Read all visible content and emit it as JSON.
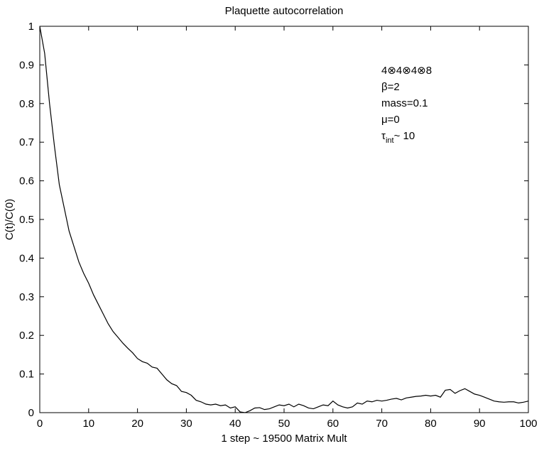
{
  "chart_data": {
    "type": "line",
    "title": "Plaquette autocorrelation",
    "xlabel": "1 step ~ 19500 Matrix Mult",
    "ylabel": "C(t)/C(0)",
    "annotations": [
      "4⊗4⊗4⊗8",
      "β=2",
      "mass=0.1",
      "μ=0"
    ],
    "tau_annotation": [
      "τ",
      "int",
      "~ 10"
    ],
    "x": [
      0,
      1,
      2,
      3,
      4,
      5,
      6,
      7,
      8,
      9,
      10,
      11,
      12,
      13,
      14,
      15,
      16,
      17,
      18,
      19,
      20,
      21,
      22,
      23,
      24,
      25,
      26,
      27,
      28,
      29,
      30,
      31,
      32,
      33,
      34,
      35,
      36,
      37,
      38,
      39,
      40,
      41,
      42,
      43,
      44,
      45,
      46,
      47,
      48,
      49,
      50,
      51,
      52,
      53,
      54,
      55,
      56,
      57,
      58,
      59,
      60,
      61,
      62,
      63,
      64,
      65,
      66,
      67,
      68,
      69,
      70,
      71,
      72,
      73,
      74,
      75,
      76,
      77,
      78,
      79,
      80,
      81,
      82,
      83,
      84,
      85,
      86,
      87,
      88,
      89,
      90,
      91,
      92,
      93,
      94,
      95,
      96,
      97,
      98,
      99,
      100
    ],
    "series": [
      {
        "color": "#000000",
        "values": [
          1.0,
          0.93,
          0.8,
          0.69,
          0.59,
          0.53,
          0.47,
          0.43,
          0.39,
          0.36,
          0.335,
          0.305,
          0.28,
          0.255,
          0.23,
          0.21,
          0.195,
          0.18,
          0.167,
          0.155,
          0.14,
          0.132,
          0.128,
          0.118,
          0.115,
          0.1,
          0.085,
          0.075,
          0.07,
          0.055,
          0.052,
          0.045,
          0.032,
          0.028,
          0.022,
          0.02,
          0.022,
          0.018,
          0.02,
          0.012,
          0.015,
          0.002,
          0.0,
          0.005,
          0.012,
          0.013,
          0.008,
          0.01,
          0.015,
          0.02,
          0.018,
          0.022,
          0.015,
          0.022,
          0.018,
          0.012,
          0.01,
          0.015,
          0.02,
          0.018,
          0.03,
          0.02,
          0.015,
          0.012,
          0.015,
          0.025,
          0.022,
          0.03,
          0.028,
          0.032,
          0.03,
          0.032,
          0.035,
          0.037,
          0.033,
          0.038,
          0.04,
          0.042,
          0.043,
          0.045,
          0.043,
          0.045,
          0.04,
          0.058,
          0.06,
          0.05,
          0.057,
          0.062,
          0.055,
          0.048,
          0.045,
          0.04,
          0.035,
          0.03,
          0.028,
          0.027,
          0.028,
          0.028,
          0.025,
          0.027,
          0.03
        ]
      }
    ],
    "xlim": [
      0,
      100
    ],
    "ylim": [
      0,
      1
    ],
    "xticks": [
      0,
      10,
      20,
      30,
      40,
      50,
      60,
      70,
      80,
      90,
      100
    ],
    "yticks": [
      0,
      0.1,
      0.2,
      0.3,
      0.4,
      0.5,
      0.6,
      0.7,
      0.8,
      0.9,
      1
    ],
    "grid": false
  }
}
